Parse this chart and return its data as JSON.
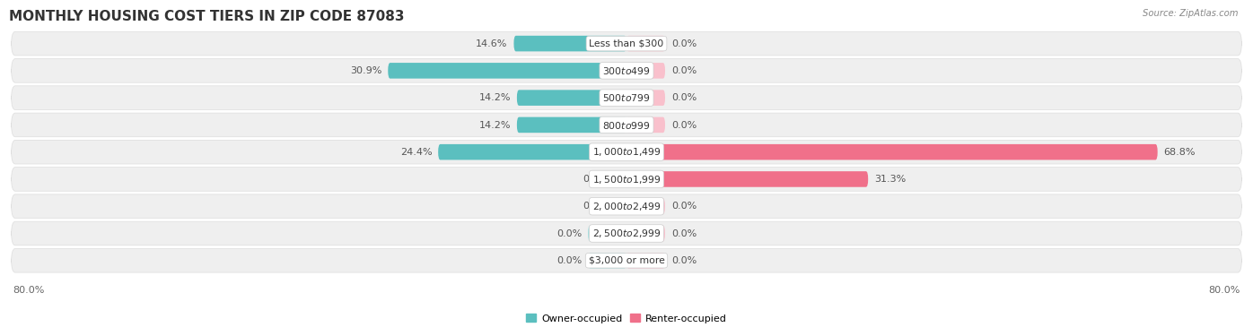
{
  "title": "MONTHLY HOUSING COST TIERS IN ZIP CODE 87083",
  "source": "Source: ZipAtlas.com",
  "categories": [
    "Less than $300",
    "$300 to $499",
    "$500 to $799",
    "$800 to $999",
    "$1,000 to $1,499",
    "$1,500 to $1,999",
    "$2,000 to $2,499",
    "$2,500 to $2,999",
    "$3,000 or more"
  ],
  "owner_values": [
    14.6,
    30.9,
    14.2,
    14.2,
    24.4,
    0.81,
    0.81,
    0.0,
    0.0
  ],
  "renter_values": [
    0.0,
    0.0,
    0.0,
    0.0,
    68.8,
    31.3,
    0.0,
    0.0,
    0.0
  ],
  "owner_color": "#5BBFBF",
  "renter_color": "#F0708A",
  "owner_color_light": "#A8DEDE",
  "renter_color_light": "#F9C0CC",
  "row_bg_color": "#EFEFEF",
  "row_bg_alt": "#F8F8F8",
  "axis_max": 80.0,
  "stub_size": 5.0,
  "title_fontsize": 11,
  "label_fontsize": 8.0,
  "tick_fontsize": 8.0,
  "val_fontsize": 8.0,
  "cat_fontsize": 7.8
}
